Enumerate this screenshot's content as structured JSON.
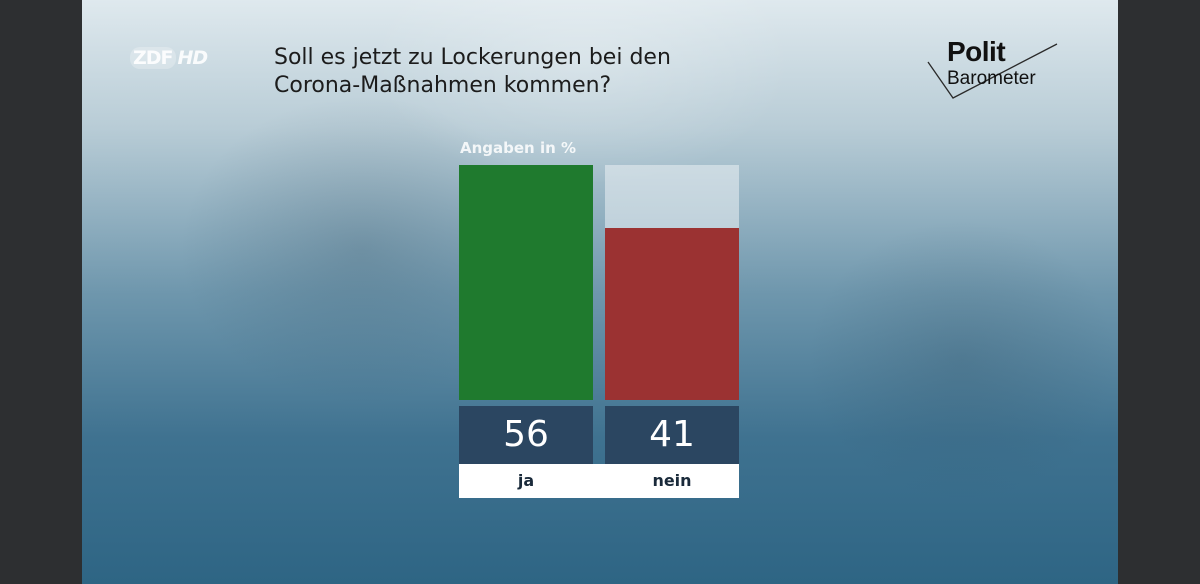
{
  "channel": {
    "logo_text": "ZDF",
    "hd_text": "HD"
  },
  "question": {
    "line1": "Soll es jetzt zu Lockerungen bei den",
    "line2": "Corona-Maßnahmen kommen?"
  },
  "brand": {
    "line1": "Polit",
    "line2": "Barometer"
  },
  "chart_data": {
    "type": "bar",
    "title": "Soll es jetzt zu Lockerungen bei den Corona-Maßnahmen kommen?",
    "unit_label": "Angaben in %",
    "categories": [
      "ja",
      "nein"
    ],
    "values": [
      56,
      41
    ],
    "value_labels": [
      "56",
      "41"
    ],
    "ylim": [
      0,
      56
    ],
    "colors": [
      "#1f7a2e",
      "#9b3232"
    ],
    "grid": false,
    "legend": "none"
  }
}
